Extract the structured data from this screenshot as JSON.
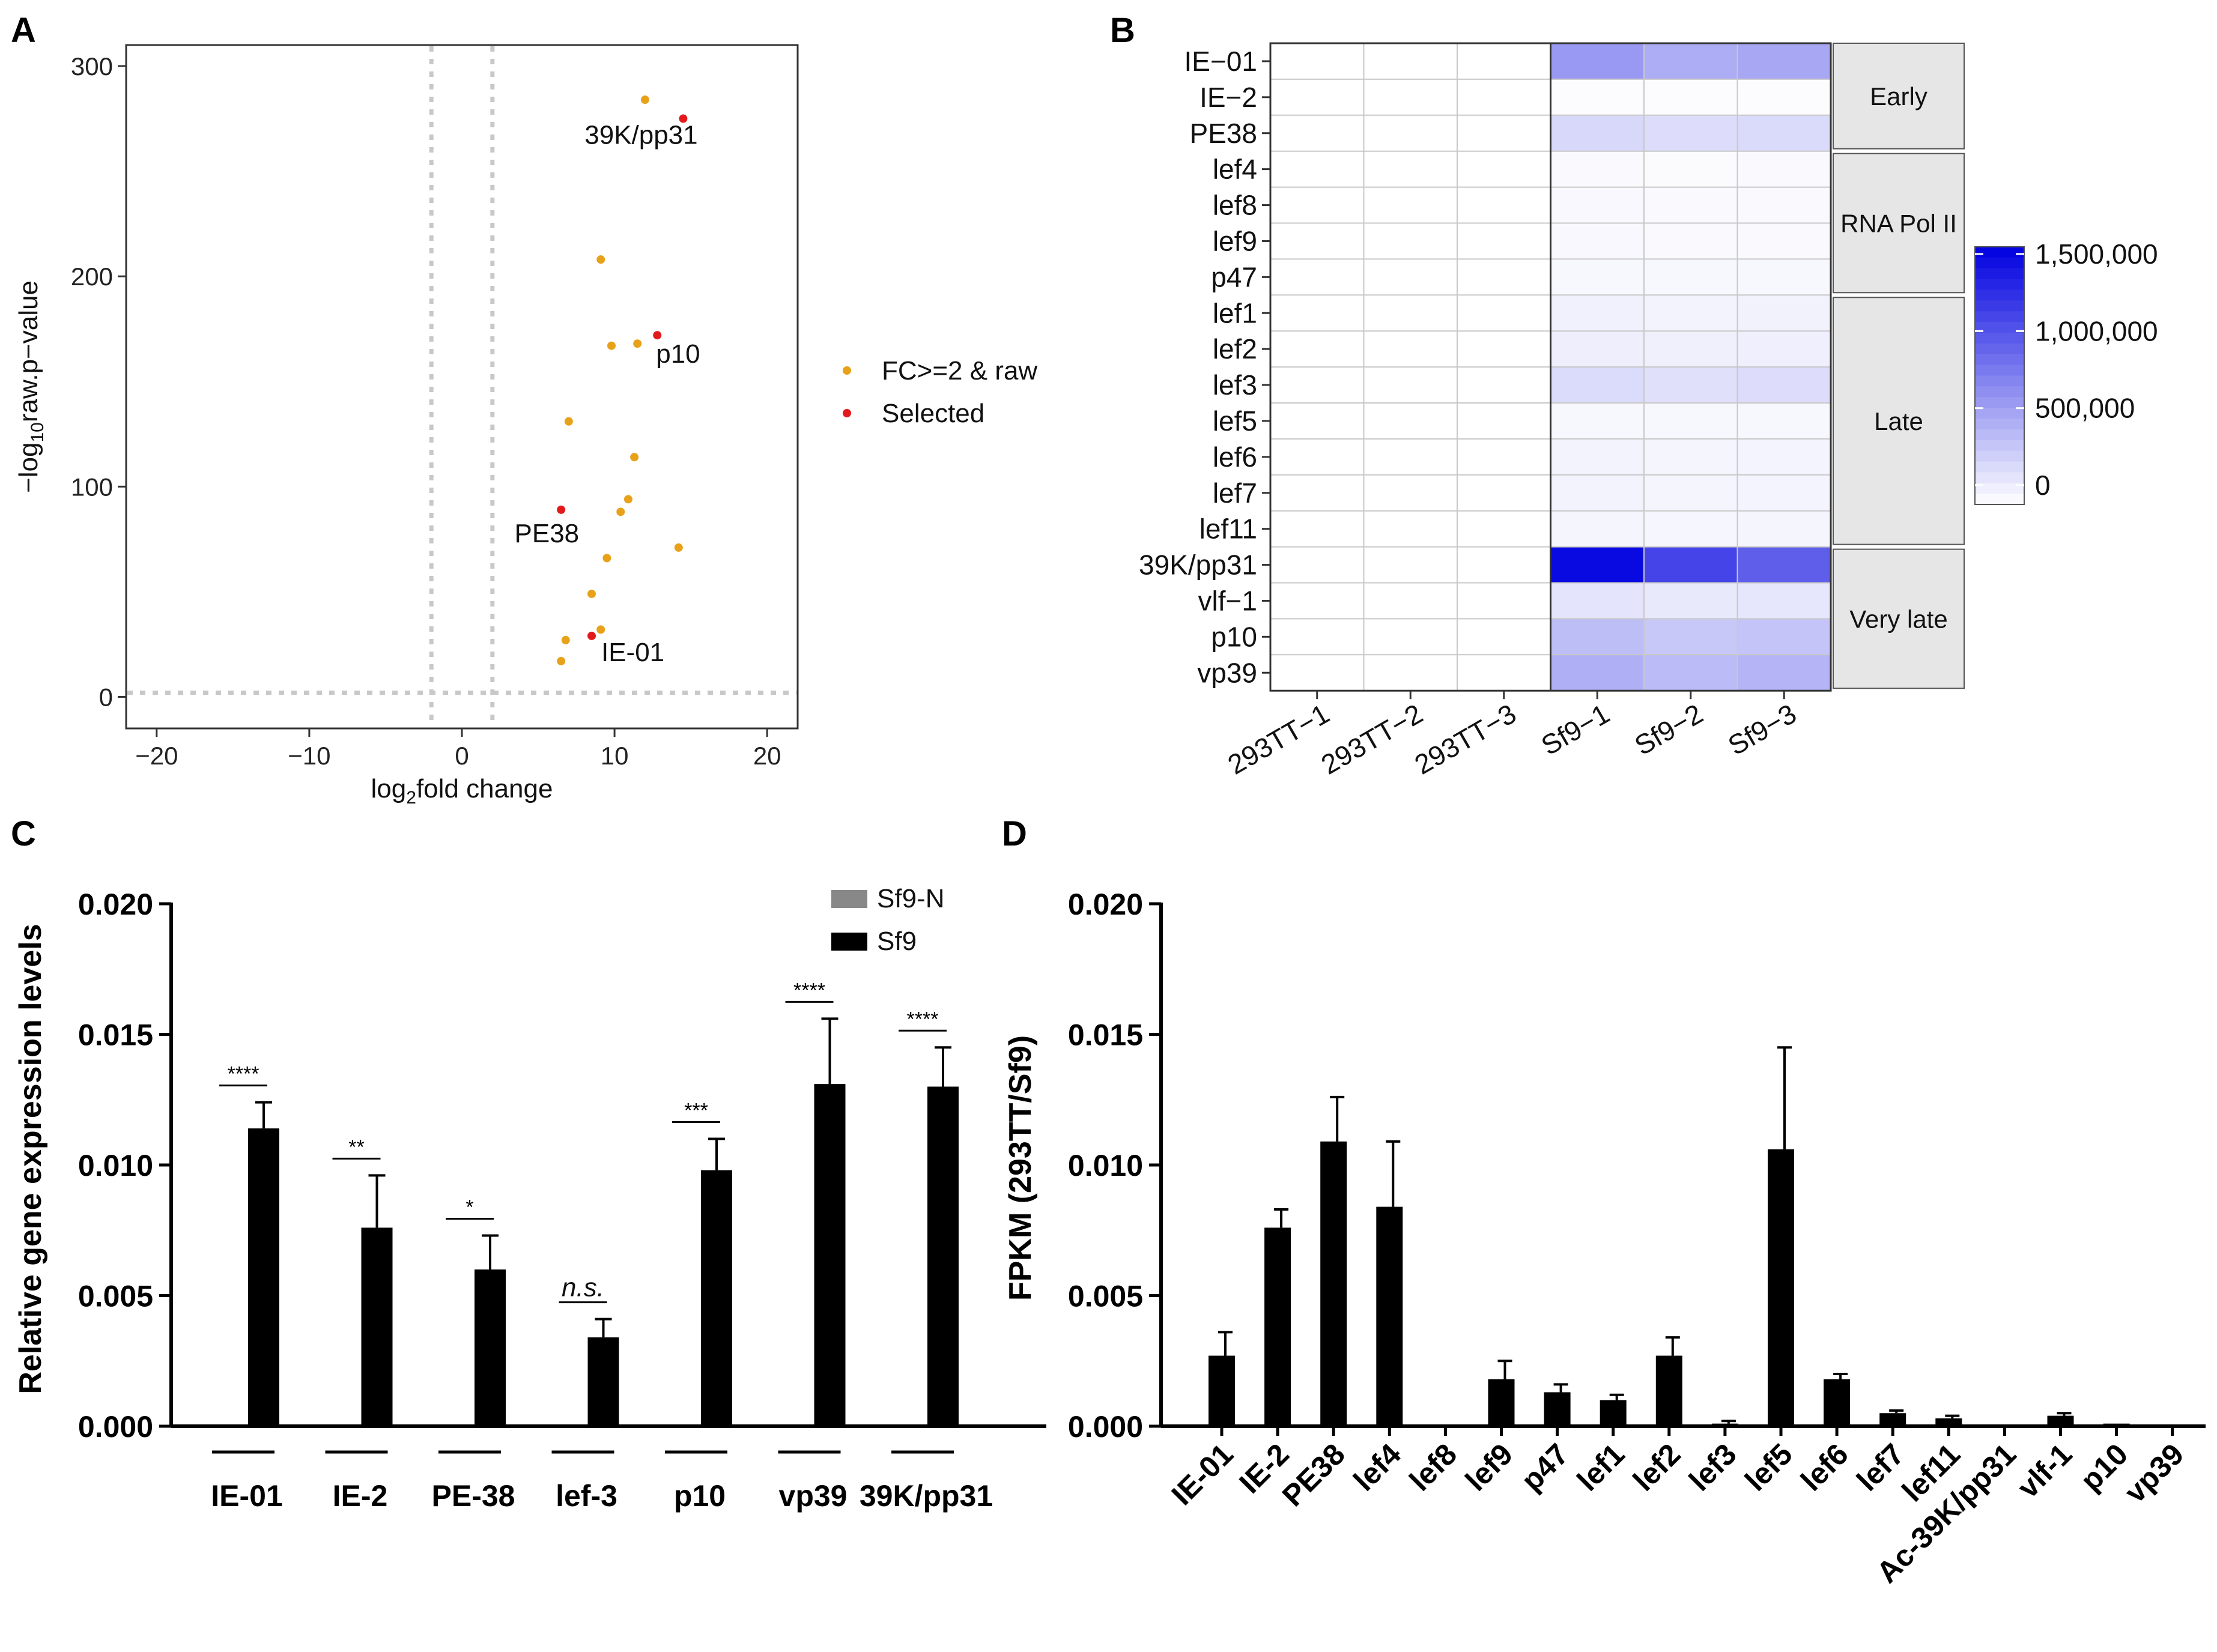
{
  "panels": {
    "a": "A",
    "b": "B",
    "c": "C",
    "d": "D"
  },
  "colors": {
    "sig": "#e8a21a",
    "selected": "#e31a1c",
    "heat_low": "#ffffff",
    "heat_high": "#0000e0",
    "bar": "#000000",
    "sf9n": "#888888",
    "grid": "#c8c8c8"
  },
  "chart_data": [
    {
      "id": "A",
      "type": "scatter",
      "title": "",
      "xlabel": "log2fold change",
      "ylabel": "-log10raw.p-value",
      "xlabel_parts": {
        "pre": "log",
        "sub": "2",
        "post": "fold change"
      },
      "ylabel_parts": {
        "pre": "−log",
        "sub": "10",
        "post": "raw.p−value"
      },
      "xlim": [
        -22,
        22
      ],
      "ylim": [
        -15,
        310
      ],
      "xticks": [
        -20,
        -10,
        0,
        10,
        20
      ],
      "xtick_labels": [
        "−20",
        "−10",
        "0",
        "10",
        "20"
      ],
      "yticks": [
        0,
        100,
        200,
        300
      ],
      "ytick_labels": [
        "0",
        "100",
        "200",
        "300"
      ],
      "thresholds": {
        "vlines": [
          -2,
          2
        ],
        "hline": 2
      },
      "legend": [
        {
          "label": "FC>=2 & raw",
          "color": "#e8a21a"
        },
        {
          "label": "Selected",
          "color": "#e31a1c"
        }
      ],
      "points_sig": [
        {
          "x": 12,
          "y": 284
        },
        {
          "x": 9.1,
          "y": 208
        },
        {
          "x": 9.8,
          "y": 167
        },
        {
          "x": 11.5,
          "y": 168
        },
        {
          "x": 7,
          "y": 131
        },
        {
          "x": 11.3,
          "y": 114
        },
        {
          "x": 10.9,
          "y": 94
        },
        {
          "x": 10.4,
          "y": 88
        },
        {
          "x": 14.2,
          "y": 71
        },
        {
          "x": 9.5,
          "y": 66
        },
        {
          "x": 8.5,
          "y": 49
        },
        {
          "x": 9.1,
          "y": 32
        },
        {
          "x": 6.8,
          "y": 27
        },
        {
          "x": 6.5,
          "y": 17
        }
      ],
      "points_selected": [
        {
          "label": "39K/pp31",
          "x": 14.5,
          "y": 275
        },
        {
          "label": "p10",
          "x": 12.8,
          "y": 172
        },
        {
          "label": "PE38",
          "x": 6.5,
          "y": 89
        },
        {
          "label": "IE-01",
          "x": 8.5,
          "y": 29
        }
      ]
    },
    {
      "id": "B",
      "type": "heatmap",
      "rows": [
        "IE−01",
        "IE−2",
        "PE38",
        "lef4",
        "lef8",
        "lef9",
        "p47",
        "lef1",
        "lef2",
        "lef3",
        "lef5",
        "lef6",
        "lef7",
        "lef11",
        "39K/pp31",
        "vlf−1",
        "p10",
        "vp39"
      ],
      "columns": [
        "293TT−1",
        "293TT−2",
        "293TT−3",
        "Sf9−1",
        "Sf9−2",
        "Sf9−3"
      ],
      "values": [
        [
          0,
          0,
          0,
          600000,
          480000,
          520000
        ],
        [
          0,
          0,
          0,
          20000,
          15000,
          18000
        ],
        [
          0,
          0,
          0,
          230000,
          200000,
          220000
        ],
        [
          0,
          0,
          0,
          30000,
          25000,
          28000
        ],
        [
          0,
          0,
          0,
          40000,
          35000,
          38000
        ],
        [
          0,
          0,
          0,
          40000,
          35000,
          38000
        ],
        [
          0,
          0,
          0,
          50000,
          45000,
          48000
        ],
        [
          0,
          0,
          0,
          80000,
          70000,
          75000
        ],
        [
          0,
          0,
          0,
          100000,
          90000,
          95000
        ],
        [
          0,
          0,
          0,
          210000,
          180000,
          200000
        ],
        [
          0,
          0,
          0,
          50000,
          45000,
          48000
        ],
        [
          0,
          0,
          0,
          70000,
          60000,
          65000
        ],
        [
          0,
          0,
          0,
          70000,
          60000,
          65000
        ],
        [
          0,
          0,
          0,
          60000,
          55000,
          58000
        ],
        [
          0,
          0,
          0,
          1450000,
          1100000,
          950000
        ],
        [
          0,
          0,
          0,
          160000,
          130000,
          150000
        ],
        [
          0,
          0,
          0,
          380000,
          330000,
          350000
        ],
        [
          0,
          0,
          0,
          470000,
          400000,
          440000
        ]
      ],
      "groups": [
        {
          "label": "Early",
          "start": 0,
          "end": 2
        },
        {
          "label": "RNA Pol II",
          "start": 3,
          "end": 6
        },
        {
          "label": "Late",
          "start": 7,
          "end": 13
        },
        {
          "label": "Very late",
          "start": 14,
          "end": 17
        }
      ],
      "colorbar": {
        "min": 0,
        "max": 1500000,
        "ticks": [
          0,
          500000,
          1000000,
          1500000
        ],
        "tick_labels": [
          "0",
          "500,000",
          "1,000,000",
          "1,500,000"
        ]
      }
    },
    {
      "id": "C",
      "type": "bar",
      "ylabel": "Relative gene expression levels",
      "categories": [
        "IE-01",
        "IE-2",
        "PE-38",
        "lef-3",
        "p10",
        "vp39",
        "39K/pp31"
      ],
      "ylim": [
        0,
        0.02
      ],
      "yticks": [
        0,
        0.005,
        0.01,
        0.015,
        0.02
      ],
      "ytick_labels": [
        "0.000",
        "0.005",
        "0.010",
        "0.015",
        "0.020"
      ],
      "series": [
        {
          "name": "Sf9-N",
          "color": "#888888",
          "values": [
            0,
            0,
            0,
            0,
            0,
            0,
            0
          ]
        },
        {
          "name": "Sf9",
          "color": "#000000",
          "values": [
            0.0114,
            0.0076,
            0.006,
            0.0034,
            0.0098,
            0.0131,
            0.013
          ],
          "errors": [
            0.001,
            0.002,
            0.0013,
            0.0007,
            0.0012,
            0.0025,
            0.0015
          ]
        }
      ],
      "significance": [
        "****",
        "**",
        "*",
        "n.s.",
        "***",
        "****",
        "****"
      ]
    },
    {
      "id": "D",
      "type": "bar",
      "ylabel": "FPKM (293TT/Sf9)",
      "categories": [
        "IE-01",
        "IE-2",
        "PE38",
        "lef4",
        "lef8",
        "lef9",
        "p47",
        "lef1",
        "lef2",
        "lef3",
        "lef5",
        "lef6",
        "lef7",
        "lef11",
        "Ac-39K/pp31",
        "vlf-1",
        "p10",
        "vp39"
      ],
      "ylim": [
        0,
        0.02
      ],
      "yticks": [
        0,
        0.005,
        0.01,
        0.015,
        0.02
      ],
      "ytick_labels": [
        "0.000",
        "0.005",
        "0.010",
        "0.015",
        "0.020"
      ],
      "values": [
        0.0027,
        0.0076,
        0.0109,
        0.0084,
        0,
        0.0018,
        0.0013,
        0.001,
        0.0027,
        0.0001,
        0.0106,
        0.0018,
        0.0005,
        0.0003,
        0,
        0.0004,
        0.0001,
        0
      ],
      "errors": [
        0.0009,
        0.0007,
        0.0017,
        0.0025,
        0,
        0.0007,
        0.0003,
        0.0002,
        0.0007,
        0.0001,
        0.0039,
        0.0002,
        0.0001,
        0.0001,
        0,
        0.0001,
        0,
        0
      ]
    }
  ]
}
